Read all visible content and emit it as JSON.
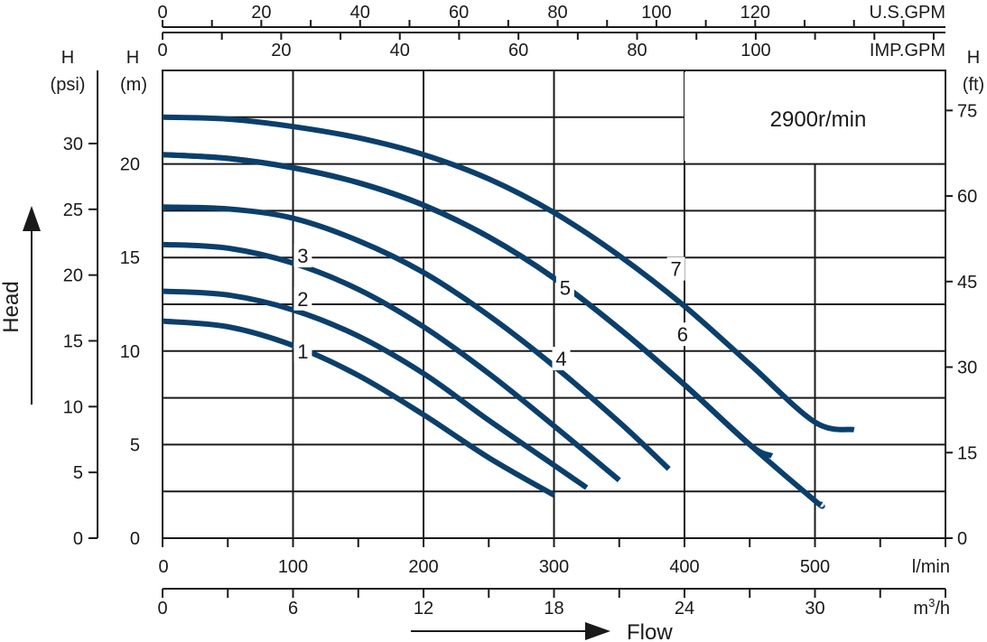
{
  "chart_data": {
    "type": "line",
    "speed_label": "2900r/min",
    "x_title": "Flow",
    "y_title": "Head",
    "units": {
      "lmin": "l/min",
      "m3h": "m",
      "m3h_sup": "3",
      "m3h_suffix": "/h",
      "usgpm": "U.S.GPM",
      "impgpm": "IMP.GPM",
      "h_m_top": "H",
      "h_m_bottom": "(m)",
      "h_psi_top": "H",
      "h_psi_bottom": "(psi)",
      "h_ft_top": "H",
      "h_ft_bottom": "(ft)"
    },
    "x_axis_lmin": {
      "range": [
        0,
        600
      ],
      "ticks": [
        0,
        100,
        200,
        300,
        400,
        500
      ]
    },
    "x_axis_m3h": {
      "ticks": [
        0,
        6,
        12,
        18,
        24,
        30
      ]
    },
    "x_axis_usgpm": {
      "ticks": [
        0,
        20,
        40,
        60,
        80,
        100,
        120
      ]
    },
    "x_axis_impgpm": {
      "ticks": [
        0,
        20,
        40,
        60,
        80,
        100
      ]
    },
    "y_axis_m": {
      "range": [
        0,
        25
      ],
      "ticks": [
        0,
        5,
        10,
        15,
        20
      ]
    },
    "y_axis_psi": {
      "ticks": [
        0,
        5,
        10,
        15,
        20,
        25,
        30
      ]
    },
    "y_axis_ft": {
      "ticks": [
        0,
        15,
        30,
        45,
        60,
        75
      ]
    },
    "grid": true,
    "series": [
      {
        "name": "1",
        "x": [
          0,
          50,
          100,
          150,
          200,
          250,
          300
        ],
        "y": [
          11.6,
          11.3,
          10.3,
          8.7,
          6.6,
          4.3,
          2.3
        ],
        "label_at": [
          102,
          10.0
        ]
      },
      {
        "name": "2",
        "x": [
          0,
          50,
          100,
          150,
          200,
          250,
          300,
          325
        ],
        "y": [
          13.2,
          13.0,
          12.2,
          10.8,
          8.8,
          6.3,
          3.9,
          2.7
        ],
        "label_at": [
          102,
          12.8
        ]
      },
      {
        "name": "3",
        "x": [
          0,
          50,
          100,
          150,
          200,
          250,
          300,
          350
        ],
        "y": [
          15.7,
          15.5,
          14.7,
          13.3,
          11.3,
          8.8,
          6.0,
          3.1
        ],
        "label_at": [
          102,
          15.1
        ]
      },
      {
        "name": "4",
        "x": [
          0,
          50,
          100,
          150,
          200,
          250,
          300,
          350,
          388
        ],
        "y": [
          17.7,
          17.6,
          17.1,
          15.9,
          14.2,
          11.9,
          9.2,
          6.2,
          3.7
        ],
        "label_at": [
          300,
          9.6
        ]
      },
      {
        "name": "5",
        "x": [
          0,
          50,
          100,
          150,
          200,
          250,
          300,
          350,
          400,
          450,
          467
        ],
        "y": [
          20.5,
          20.3,
          19.8,
          19.0,
          17.8,
          16.1,
          13.9,
          11.2,
          8.2,
          5.0,
          4.4
        ],
        "label_at": [
          303,
          13.4
        ]
      },
      {
        "name": "6",
        "x": [
          0,
          50,
          100,
          150,
          200,
          250,
          300,
          350,
          400,
          450,
          500,
          505
        ],
        "y": [
          22.5,
          22.4,
          22.0,
          21.4,
          20.5,
          19.2,
          17.4,
          15.1,
          12.4,
          9.3,
          6.2,
          5.8
        ],
        "label_at": [
          393,
          10.9
        ]
      },
      {
        "name": "7",
        "x": [
          0,
          50,
          100,
          150,
          200,
          250,
          300,
          350,
          400,
          450,
          500,
          530
        ],
        "y": [
          22.5,
          22.4,
          22.0,
          21.4,
          20.5,
          19.2,
          17.4,
          15.1,
          12.4,
          9.3,
          6.2,
          5.8
        ],
        "label_at": [
          388,
          14.4
        ]
      }
    ]
  },
  "colors": {
    "curve": "#0b3f6b",
    "grid": "#1a1a1a",
    "text": "#1a1a1a",
    "background": "#ffffff"
  }
}
